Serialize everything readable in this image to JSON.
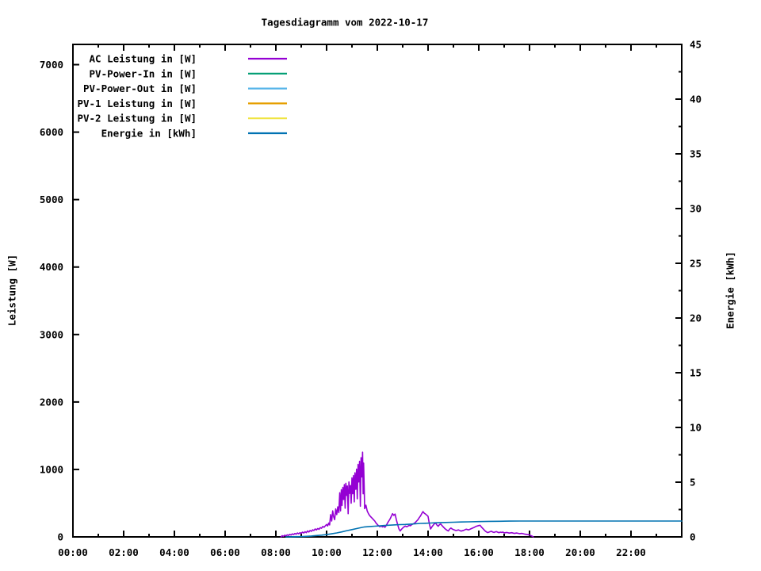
{
  "chart_data": {
    "type": "line",
    "title": "Tagesdiagramm vom 2022-10-17",
    "background_color": "#ffffff",
    "grid": "off",
    "legend_location": "top-left-inside",
    "x": {
      "min": 0,
      "max": 24,
      "unit": "time of day",
      "major_ticks": [
        {
          "t": 0,
          "label": "00:00"
        },
        {
          "t": 2,
          "label": "02:00"
        },
        {
          "t": 4,
          "label": "04:00"
        },
        {
          "t": 6,
          "label": "06:00"
        },
        {
          "t": 8,
          "label": "08:00"
        },
        {
          "t": 10,
          "label": "10:00"
        },
        {
          "t": 12,
          "label": "12:00"
        },
        {
          "t": 14,
          "label": "14:00"
        },
        {
          "t": 16,
          "label": "16:00"
        },
        {
          "t": 18,
          "label": "18:00"
        },
        {
          "t": 20,
          "label": "20:00"
        },
        {
          "t": 22,
          "label": "22:00"
        }
      ],
      "minor_ticks": [
        1,
        3,
        5,
        7,
        9,
        11,
        13,
        15,
        17,
        19,
        21,
        23
      ]
    },
    "y1": {
      "label": "Leistung [W]",
      "min": 0,
      "max": 7300,
      "major_ticks": [
        0,
        1000,
        2000,
        3000,
        4000,
        5000,
        6000,
        7000
      ]
    },
    "y2": {
      "label": "Energie [kWh]",
      "min": 0,
      "max": 45,
      "major_ticks": [
        0,
        5,
        10,
        15,
        20,
        25,
        30,
        35,
        40,
        45
      ],
      "minor_ticks": [
        2.5,
        7.5,
        12.5,
        17.5,
        22.5,
        27.5,
        32.5,
        37.5,
        42.5
      ]
    },
    "series": [
      {
        "key": "ac-leistung",
        "name": "AC Leistung in [W]",
        "color": "#9400d3",
        "axis": "y1",
        "visible": true,
        "points": [
          [
            8.2,
            0
          ],
          [
            8.25,
            18
          ],
          [
            8.3,
            8
          ],
          [
            8.35,
            25
          ],
          [
            8.4,
            15
          ],
          [
            8.45,
            30
          ],
          [
            8.5,
            22
          ],
          [
            8.55,
            38
          ],
          [
            8.6,
            28
          ],
          [
            8.65,
            45
          ],
          [
            8.7,
            35
          ],
          [
            8.75,
            50
          ],
          [
            8.8,
            40
          ],
          [
            8.85,
            58
          ],
          [
            8.9,
            46
          ],
          [
            8.95,
            62
          ],
          [
            9.0,
            52
          ],
          [
            9.05,
            70
          ],
          [
            9.1,
            58
          ],
          [
            9.15,
            78
          ],
          [
            9.2,
            64
          ],
          [
            9.25,
            88
          ],
          [
            9.3,
            72
          ],
          [
            9.35,
            95
          ],
          [
            9.4,
            82
          ],
          [
            9.45,
            105
          ],
          [
            9.5,
            95
          ],
          [
            9.55,
            118
          ],
          [
            9.6,
            104
          ],
          [
            9.65,
            125
          ],
          [
            9.7,
            112
          ],
          [
            9.75,
            138
          ],
          [
            9.8,
            128
          ],
          [
            9.85,
            155
          ],
          [
            9.9,
            142
          ],
          [
            9.95,
            165
          ],
          [
            10.0,
            185
          ],
          [
            10.04,
            162
          ],
          [
            10.08,
            205
          ],
          [
            10.12,
            178
          ],
          [
            10.16,
            330
          ],
          [
            10.2,
            235
          ],
          [
            10.24,
            385
          ],
          [
            10.28,
            295
          ],
          [
            10.32,
            255
          ],
          [
            10.36,
            415
          ],
          [
            10.4,
            330
          ],
          [
            10.44,
            445
          ],
          [
            10.48,
            360
          ],
          [
            10.52,
            655
          ],
          [
            10.55,
            385
          ],
          [
            10.58,
            700
          ],
          [
            10.61,
            465
          ],
          [
            10.64,
            735
          ],
          [
            10.67,
            555
          ],
          [
            10.7,
            775
          ],
          [
            10.73,
            425
          ],
          [
            10.76,
            795
          ],
          [
            10.79,
            615
          ],
          [
            10.82,
            755
          ],
          [
            10.85,
            345
          ],
          [
            10.88,
            815
          ],
          [
            10.91,
            645
          ],
          [
            10.94,
            760
          ],
          [
            10.97,
            500
          ],
          [
            11.0,
            875
          ],
          [
            11.03,
            640
          ],
          [
            11.06,
            910
          ],
          [
            11.09,
            520
          ],
          [
            11.12,
            950
          ],
          [
            11.15,
            705
          ],
          [
            11.18,
            1005
          ],
          [
            11.21,
            565
          ],
          [
            11.24,
            1075
          ],
          [
            11.27,
            815
          ],
          [
            11.3,
            1120
          ],
          [
            11.33,
            455
          ],
          [
            11.36,
            1175
          ],
          [
            11.39,
            890
          ],
          [
            11.42,
            1255
          ],
          [
            11.44,
            640
          ],
          [
            11.46,
            1095
          ],
          [
            11.48,
            760
          ],
          [
            11.5,
            420
          ],
          [
            11.55,
            470
          ],
          [
            11.6,
            385
          ],
          [
            11.65,
            345
          ],
          [
            11.7,
            315
          ],
          [
            11.75,
            295
          ],
          [
            11.8,
            275
          ],
          [
            11.85,
            255
          ],
          [
            11.9,
            235
          ],
          [
            11.95,
            205
          ],
          [
            12.0,
            185
          ],
          [
            12.05,
            165
          ],
          [
            12.1,
            150
          ],
          [
            12.15,
            162
          ],
          [
            12.2,
            148
          ],
          [
            12.25,
            158
          ],
          [
            12.3,
            142
          ],
          [
            12.35,
            168
          ],
          [
            12.4,
            205
          ],
          [
            12.45,
            235
          ],
          [
            12.5,
            265
          ],
          [
            12.55,
            305
          ],
          [
            12.6,
            345
          ],
          [
            12.65,
            318
          ],
          [
            12.7,
            338
          ],
          [
            12.75,
            255
          ],
          [
            12.8,
            185
          ],
          [
            12.85,
            120
          ],
          [
            12.9,
            88
          ],
          [
            12.95,
            112
          ],
          [
            13.0,
            132
          ],
          [
            13.05,
            148
          ],
          [
            13.1,
            160
          ],
          [
            13.15,
            150
          ],
          [
            13.2,
            158
          ],
          [
            13.25,
            172
          ],
          [
            13.3,
            165
          ],
          [
            13.35,
            180
          ],
          [
            13.4,
            190
          ],
          [
            13.45,
            200
          ],
          [
            13.5,
            215
          ],
          [
            13.55,
            235
          ],
          [
            13.6,
            255
          ],
          [
            13.65,
            285
          ],
          [
            13.7,
            310
          ],
          [
            13.75,
            345
          ],
          [
            13.8,
            375
          ],
          [
            13.85,
            352
          ],
          [
            13.9,
            338
          ],
          [
            13.95,
            322
          ],
          [
            14.0,
            305
          ],
          [
            14.05,
            195
          ],
          [
            14.1,
            118
          ],
          [
            14.15,
            148
          ],
          [
            14.2,
            172
          ],
          [
            14.25,
            195
          ],
          [
            14.3,
            205
          ],
          [
            14.35,
            175
          ],
          [
            14.4,
            158
          ],
          [
            14.45,
            182
          ],
          [
            14.5,
            192
          ],
          [
            14.55,
            168
          ],
          [
            14.6,
            148
          ],
          [
            14.65,
            128
          ],
          [
            14.7,
            112
          ],
          [
            14.75,
            98
          ],
          [
            14.8,
            88
          ],
          [
            14.85,
            115
          ],
          [
            14.9,
            132
          ],
          [
            14.95,
            118
          ],
          [
            15.0,
            108
          ],
          [
            15.1,
            94
          ],
          [
            15.2,
            104
          ],
          [
            15.3,
            86
          ],
          [
            15.4,
            96
          ],
          [
            15.5,
            114
          ],
          [
            15.6,
            104
          ],
          [
            15.7,
            122
          ],
          [
            15.8,
            138
          ],
          [
            15.9,
            158
          ],
          [
            16.0,
            168
          ],
          [
            16.05,
            172
          ],
          [
            16.1,
            148
          ],
          [
            16.15,
            128
          ],
          [
            16.2,
            108
          ],
          [
            16.25,
            88
          ],
          [
            16.3,
            74
          ],
          [
            16.35,
            64
          ],
          [
            16.4,
            70
          ],
          [
            16.45,
            78
          ],
          [
            16.5,
            84
          ],
          [
            16.55,
            72
          ],
          [
            16.6,
            66
          ],
          [
            16.65,
            74
          ],
          [
            16.7,
            78
          ],
          [
            16.75,
            68
          ],
          [
            16.8,
            62
          ],
          [
            16.85,
            70
          ],
          [
            16.9,
            66
          ],
          [
            16.95,
            72
          ],
          [
            17.0,
            60
          ],
          [
            17.1,
            66
          ],
          [
            17.2,
            56
          ],
          [
            17.3,
            62
          ],
          [
            17.4,
            52
          ],
          [
            17.5,
            58
          ],
          [
            17.6,
            48
          ],
          [
            17.7,
            52
          ],
          [
            17.8,
            42
          ],
          [
            17.9,
            36
          ],
          [
            18.0,
            30
          ],
          [
            18.05,
            20
          ],
          [
            18.1,
            12
          ],
          [
            18.15,
            0
          ]
        ]
      },
      {
        "key": "pv-power-in",
        "name": "PV-Power-In in [W]",
        "color": "#009e73",
        "axis": "y1",
        "visible": false,
        "points": []
      },
      {
        "key": "pv-power-out",
        "name": "PV-Power-Out in [W]",
        "color": "#56b4e9",
        "axis": "y1",
        "visible": false,
        "points": []
      },
      {
        "key": "pv1-leistung",
        "name": "PV-1 Leistung in [W]",
        "color": "#e69f00",
        "axis": "y1",
        "visible": false,
        "points": []
      },
      {
        "key": "pv2-leistung",
        "name": "PV-2 Leistung in [W]",
        "color": "#f0e442",
        "axis": "y1",
        "visible": false,
        "points": []
      },
      {
        "key": "energie",
        "name": "Energie in [kWh]",
        "color": "#0072b2",
        "axis": "y2",
        "visible": true,
        "points": [
          [
            8.4,
            0.0
          ],
          [
            8.6,
            0.01
          ],
          [
            8.8,
            0.02
          ],
          [
            9.0,
            0.03
          ],
          [
            9.2,
            0.05
          ],
          [
            9.4,
            0.08
          ],
          [
            9.6,
            0.12
          ],
          [
            9.8,
            0.16
          ],
          [
            10.0,
            0.21
          ],
          [
            10.2,
            0.28
          ],
          [
            10.4,
            0.36
          ],
          [
            10.6,
            0.46
          ],
          [
            10.8,
            0.57
          ],
          [
            11.0,
            0.67
          ],
          [
            11.2,
            0.77
          ],
          [
            11.4,
            0.87
          ],
          [
            11.5,
            0.91
          ],
          [
            11.7,
            0.95
          ],
          [
            11.9,
            0.98
          ],
          [
            12.1,
            1.01
          ],
          [
            12.3,
            1.04
          ],
          [
            12.5,
            1.07
          ],
          [
            12.7,
            1.1
          ],
          [
            12.9,
            1.12
          ],
          [
            13.1,
            1.14
          ],
          [
            13.3,
            1.17
          ],
          [
            13.5,
            1.2
          ],
          [
            13.7,
            1.23
          ],
          [
            13.9,
            1.25
          ],
          [
            14.1,
            1.27
          ],
          [
            14.3,
            1.29
          ],
          [
            14.5,
            1.31
          ],
          [
            14.7,
            1.32
          ],
          [
            15.0,
            1.34
          ],
          [
            15.3,
            1.36
          ],
          [
            15.6,
            1.38
          ],
          [
            16.0,
            1.4
          ],
          [
            16.4,
            1.42
          ],
          [
            16.8,
            1.43
          ],
          [
            17.2,
            1.44
          ],
          [
            17.6,
            1.45
          ],
          [
            24.0,
            1.45
          ]
        ]
      }
    ]
  }
}
